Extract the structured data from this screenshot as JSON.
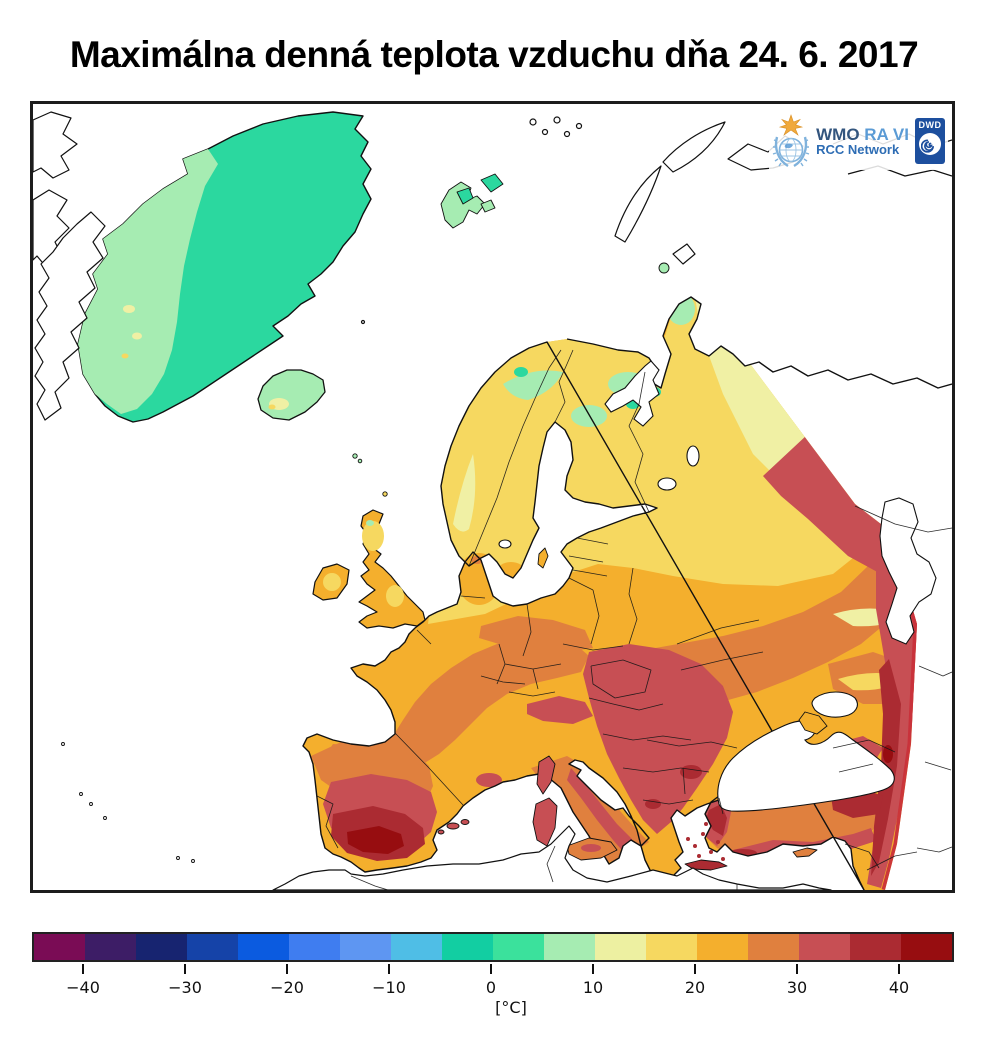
{
  "title": "Maximálna denná teplota vzduchu dňa 24. 6. 2017",
  "header_logos": {
    "wmo_acronym": "WMO",
    "wmo_region": "RA VI",
    "wmo_network": "RCC Network",
    "dwd_acronym": "DWD"
  },
  "colorbar": {
    "unit": "[°C]",
    "min": -45,
    "max": 45,
    "step": 5,
    "ticks": [
      "−40",
      "−30",
      "−20",
      "−10",
      "0",
      "10",
      "20",
      "30",
      "40"
    ],
    "segments": [
      "#7A0C55",
      "#3D1D66",
      "#172470",
      "#1543A8",
      "#0B5BE0",
      "#3F7DF0",
      "#5E96F2",
      "#4FBEE6",
      "#12CEA2",
      "#3BE19C",
      "#A6ECB2",
      "#EDF0A1",
      "#F6D860",
      "#F4AF2D",
      "#E0803E",
      "#C74F54",
      "#AB2B32",
      "#970D10"
    ]
  },
  "map_palette": {
    "sea": "#FFFFFF",
    "coastline": "#111111",
    "cold_teal": "#2BD89F",
    "cool_green": "#A6ECB2",
    "pale_yellow": "#F0F0A4",
    "yellow": "#F6D860",
    "amber": "#F4AF2D",
    "orange": "#E0803E",
    "red": "#C74F54",
    "dark_red": "#AB2B32",
    "deep_red": "#970D10",
    "domain_edge": "#C9303A"
  }
}
